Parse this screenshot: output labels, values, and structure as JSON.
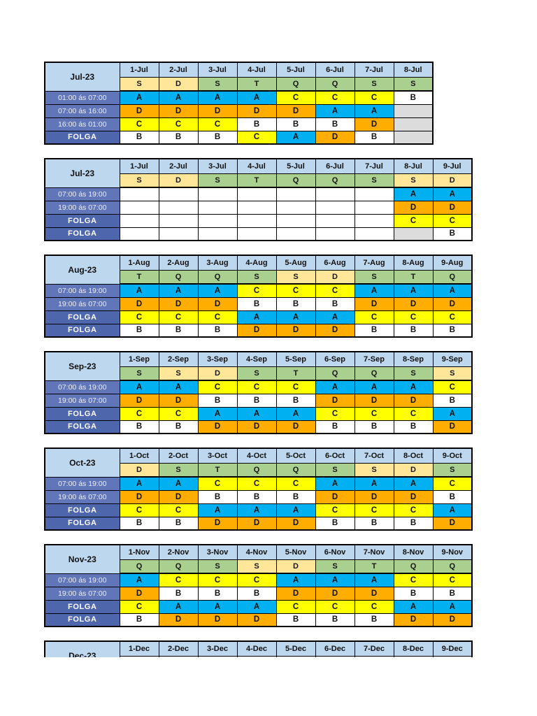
{
  "page": {
    "background": "#FFFFFF",
    "description_title": ""
  },
  "colors": {
    "shift_A": "#00B0F0",
    "shift_B": "#FFFFFF",
    "shift_C": "#FFFF00",
    "shift_D": "#FFAD00",
    "empty_white": "#FFFFFF",
    "empty_gray": "#DCDCDC",
    "header_blue": "#BDD7EE",
    "weekend_tan": "#FFE699",
    "weekday_green": "#A9D08E",
    "time_label_blue": "#6176B9",
    "folga_label_blue": "#4E66AC",
    "border_black": "#000000"
  },
  "tables": [
    {
      "month": "Jul-23",
      "dates": [
        "1-Jul",
        "2-Jul",
        "3-Jul",
        "4-Jul",
        "5-Jul",
        "6-Jul",
        "7-Jul",
        "8-Jul"
      ],
      "day_letters": [
        "S",
        "D",
        "S",
        "T",
        "Q",
        "Q",
        "S",
        "S"
      ],
      "day_types": [
        "weekend",
        "weekend",
        "weekday",
        "weekday",
        "weekday",
        "weekday",
        "weekday",
        "weekday"
      ],
      "thick_left_cols": [
        6
      ],
      "rows": [
        {
          "label": "01:00 ás 07:00",
          "kind": "time",
          "cells": [
            "A",
            "A",
            "A",
            "A",
            "C",
            "C",
            "C",
            "B"
          ]
        },
        {
          "label": "07:00 ás 16:00",
          "kind": "time",
          "cells": [
            "D",
            "D",
            "D",
            "D",
            "D",
            "A",
            "A",
            "gray"
          ]
        },
        {
          "label": "16:00 ás 01:00",
          "kind": "time",
          "cells": [
            "C",
            "C",
            "C",
            "B",
            "B",
            "B",
            "D",
            "gray"
          ]
        },
        {
          "label": "FOLGA",
          "kind": "folga",
          "cells": [
            "B",
            "B",
            "B",
            "C",
            "A",
            "D",
            "B",
            "gray"
          ]
        }
      ]
    },
    {
      "month": "Jul-23",
      "dates": [
        "1-Jul",
        "2-Jul",
        "3-Jul",
        "4-Jul",
        "5-Jul",
        "6-Jul",
        "7-Jul",
        "8-Jul",
        "9-Jul"
      ],
      "day_letters": [
        "S",
        "D",
        "S",
        "T",
        "Q",
        "Q",
        "S",
        "S",
        "D"
      ],
      "day_types": [
        "weekend",
        "weekend",
        "weekday",
        "weekday",
        "weekday",
        "weekday",
        "weekday",
        "weekend",
        "weekend"
      ],
      "thick_left_cols": [
        7
      ],
      "rows": [
        {
          "label": "07:00 ás 19:00",
          "kind": "time",
          "cells": [
            "",
            "",
            "",
            "",
            "",
            "",
            "",
            "A",
            "A"
          ]
        },
        {
          "label": "19:00 ás 07:00",
          "kind": "time",
          "cells": [
            "",
            "",
            "",
            "",
            "",
            "",
            "",
            "D",
            "D"
          ]
        },
        {
          "label": "FOLGA",
          "kind": "folga",
          "cells": [
            "",
            "",
            "",
            "",
            "",
            "",
            "",
            "C",
            "C"
          ]
        },
        {
          "label": "FOLGA",
          "kind": "folga",
          "cells": [
            "",
            "",
            "",
            "",
            "",
            "",
            "",
            "gray",
            "B"
          ]
        }
      ]
    },
    {
      "month": "Aug-23",
      "dates": [
        "1-Aug",
        "2-Aug",
        "3-Aug",
        "4-Aug",
        "5-Aug",
        "6-Aug",
        "7-Aug",
        "8-Aug",
        "9-Aug"
      ],
      "day_letters": [
        "T",
        "Q",
        "Q",
        "S",
        "S",
        "D",
        "S",
        "T",
        "Q"
      ],
      "day_types": [
        "weekday",
        "weekday",
        "weekday",
        "weekday",
        "weekend",
        "weekend",
        "weekday",
        "weekday",
        "weekday"
      ],
      "thick_left_cols": [
        3,
        6
      ],
      "rows": [
        {
          "label": "07:00 ás 19:00",
          "kind": "time",
          "cells": [
            "A",
            "A",
            "A",
            "C",
            "C",
            "C",
            "A",
            "A",
            "A"
          ]
        },
        {
          "label": "19:00 ás 07:00",
          "kind": "time",
          "cells": [
            "D",
            "D",
            "D",
            "B",
            "B",
            "B",
            "D",
            "D",
            "D"
          ]
        },
        {
          "label": "FOLGA",
          "kind": "folga",
          "cells": [
            "C",
            "C",
            "C",
            "A",
            "A",
            "A",
            "C",
            "C",
            "C"
          ]
        },
        {
          "label": "FOLGA",
          "kind": "folga",
          "cells": [
            "B",
            "B",
            "B",
            "D",
            "D",
            "D",
            "B",
            "B",
            "B"
          ]
        }
      ]
    },
    {
      "month": "Sep-23",
      "dates": [
        "1-Sep",
        "2-Sep",
        "3-Sep",
        "4-Sep",
        "5-Sep",
        "6-Sep",
        "7-Sep",
        "8-Sep",
        "9-Sep"
      ],
      "day_letters": [
        "S",
        "S",
        "D",
        "S",
        "T",
        "Q",
        "Q",
        "S",
        "S"
      ],
      "day_types": [
        "weekday",
        "weekend",
        "weekend",
        "weekday",
        "weekday",
        "weekday",
        "weekday",
        "weekday",
        "weekend"
      ],
      "thick_left_cols": [
        2,
        5,
        8
      ],
      "rows": [
        {
          "label": "07:00 ás 19:00",
          "kind": "time",
          "cells": [
            "A",
            "A",
            "C",
            "C",
            "C",
            "A",
            "A",
            "A",
            "C"
          ]
        },
        {
          "label": "19:00 ás 07:00",
          "kind": "time",
          "cells": [
            "D",
            "D",
            "B",
            "B",
            "B",
            "D",
            "D",
            "D",
            "B"
          ]
        },
        {
          "label": "FOLGA",
          "kind": "folga",
          "cells": [
            "C",
            "C",
            "A",
            "A",
            "A",
            "C",
            "C",
            "C",
            "A"
          ]
        },
        {
          "label": "FOLGA",
          "kind": "folga",
          "cells": [
            "B",
            "B",
            "D",
            "D",
            "D",
            "B",
            "B",
            "B",
            "D"
          ]
        }
      ]
    },
    {
      "month": "Oct-23",
      "dates": [
        "1-Oct",
        "2-Oct",
        "3-Oct",
        "4-Oct",
        "5-Oct",
        "6-Oct",
        "7-Oct",
        "8-Oct",
        "9-Oct"
      ],
      "day_letters": [
        "D",
        "S",
        "T",
        "Q",
        "Q",
        "S",
        "S",
        "D",
        "S"
      ],
      "day_types": [
        "weekend",
        "weekday",
        "weekday",
        "weekday",
        "weekday",
        "weekday",
        "weekend",
        "weekend",
        "weekday"
      ],
      "thick_left_cols": [
        2,
        5,
        8
      ],
      "rows": [
        {
          "label": "07:00 ás 19:00",
          "kind": "time",
          "cells": [
            "A",
            "A",
            "C",
            "C",
            "C",
            "A",
            "A",
            "A",
            "C"
          ]
        },
        {
          "label": "19:00 ás 07:00",
          "kind": "time",
          "cells": [
            "D",
            "D",
            "B",
            "B",
            "B",
            "D",
            "D",
            "D",
            "B"
          ]
        },
        {
          "label": "FOLGA",
          "kind": "folga",
          "cells": [
            "C",
            "C",
            "A",
            "A",
            "A",
            "C",
            "C",
            "C",
            "A"
          ]
        },
        {
          "label": "FOLGA",
          "kind": "folga",
          "cells": [
            "B",
            "B",
            "D",
            "D",
            "D",
            "B",
            "B",
            "B",
            "D"
          ]
        }
      ]
    },
    {
      "month": "Nov-23",
      "dates": [
        "1-Nov",
        "2-Nov",
        "3-Nov",
        "4-Nov",
        "5-Nov",
        "6-Nov",
        "7-Nov",
        "8-Nov",
        "9-Nov"
      ],
      "day_letters": [
        "Q",
        "Q",
        "S",
        "S",
        "D",
        "S",
        "T",
        "Q",
        "Q"
      ],
      "day_types": [
        "weekday",
        "weekday",
        "weekday",
        "weekend",
        "weekend",
        "weekday",
        "weekday",
        "weekday",
        "weekday"
      ],
      "thick_left_cols": [
        1,
        4,
        7
      ],
      "rows": [
        {
          "label": "07:00 ás 19:00",
          "kind": "time",
          "cells": [
            "A",
            "C",
            "C",
            "C",
            "A",
            "A",
            "A",
            "C",
            "C"
          ]
        },
        {
          "label": "19:00 ás 07:00",
          "kind": "time",
          "cells": [
            "D",
            "B",
            "B",
            "B",
            "D",
            "D",
            "D",
            "B",
            "B"
          ]
        },
        {
          "label": "FOLGA",
          "kind": "folga",
          "cells": [
            "C",
            "A",
            "A",
            "A",
            "C",
            "C",
            "C",
            "A",
            "A"
          ]
        },
        {
          "label": "FOLGA",
          "kind": "folga",
          "cells": [
            "B",
            "D",
            "D",
            "D",
            "B",
            "B",
            "B",
            "D",
            "D"
          ]
        }
      ]
    },
    {
      "month": "Dec-23",
      "dates": [
        "1-Dec",
        "2-Dec",
        "3-Dec",
        "4-Dec",
        "5-Dec",
        "6-Dec",
        "7-Dec",
        "8-Dec",
        "9-Dec"
      ],
      "day_letters": [],
      "day_types": [],
      "thick_left_cols": [],
      "rows": [],
      "clipped": true
    }
  ]
}
